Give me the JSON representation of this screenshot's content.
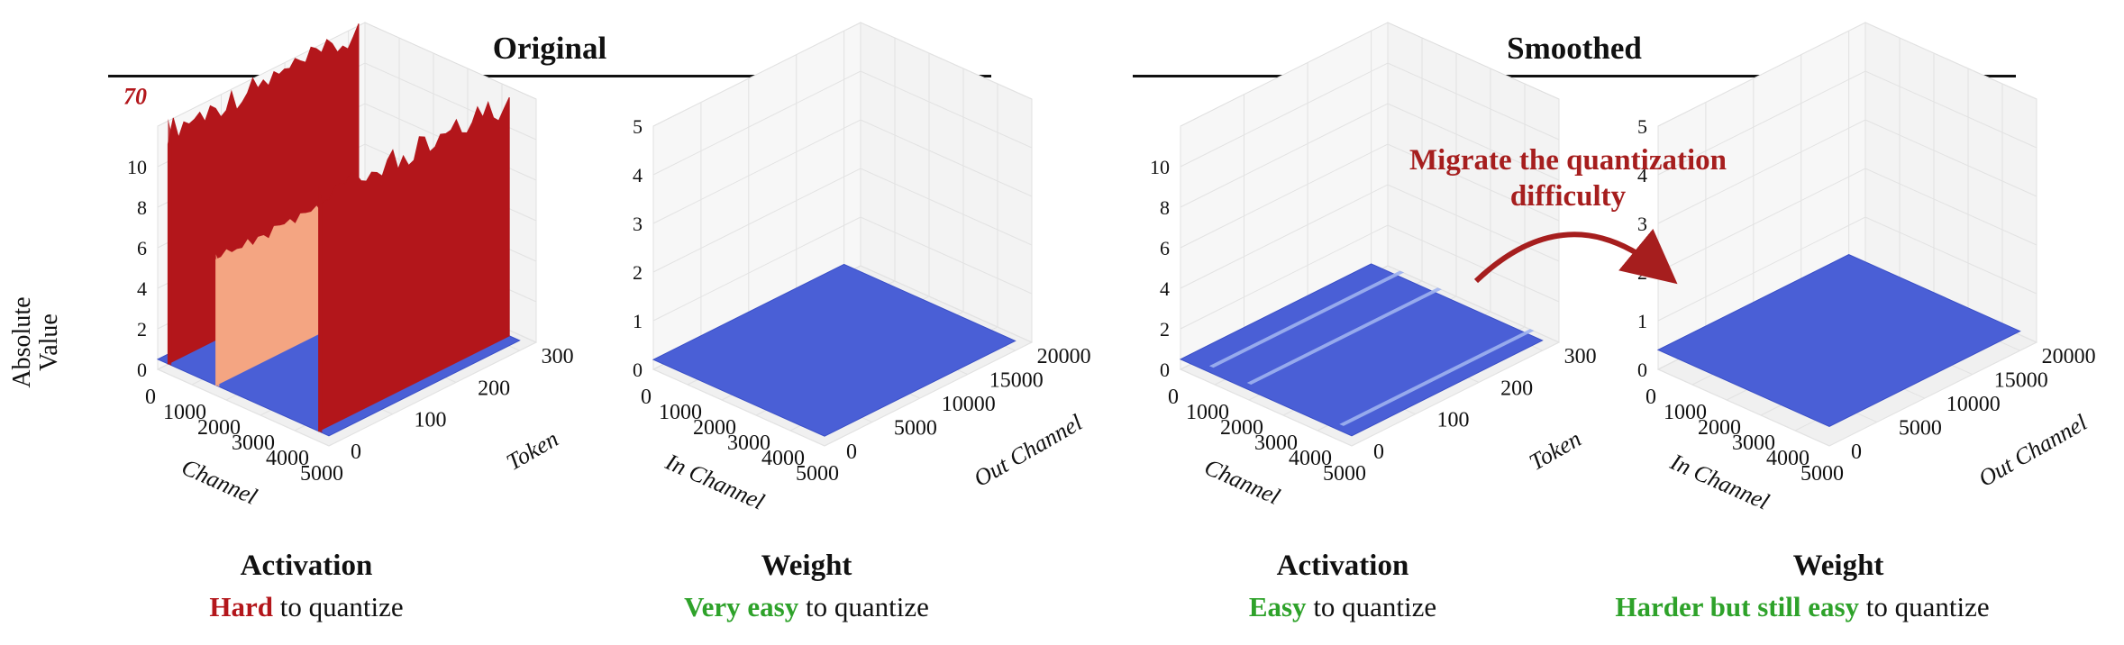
{
  "sections": {
    "original": "Original",
    "smoothed": "Smoothed"
  },
  "ylabel": [
    "Absolute",
    "Value"
  ],
  "migrate_text": [
    "Migrate the quantization",
    "difficulty"
  ],
  "captions": [
    {
      "title": "Activation",
      "highlight": "Hard",
      "rest": " to quantize",
      "color": "red"
    },
    {
      "title": "Weight",
      "highlight": "Very easy",
      "rest": " to quantize",
      "color": "green"
    },
    {
      "title": "Activation",
      "highlight": "Easy",
      "rest": " to quantize",
      "color": "green"
    },
    {
      "title": "Weight",
      "highlight": "Harder but still easy",
      "rest": " to quantize",
      "color": "green"
    }
  ],
  "colors": {
    "outlier_red": "#b3161b",
    "mid_orange": "#f4a582",
    "base_blue": "#4a5fd6",
    "light_blue": "#9fb3f0",
    "highlight_red": "#b3161b",
    "highlight_green": "#2ea22a",
    "arrow": "#a61e1e"
  },
  "chart_data": [
    {
      "type": "surface3d",
      "panel": "Original Activation",
      "xlabel": "Channel",
      "ylabel": "Token",
      "zlabel": "Absolute Value",
      "x_ticks": [
        "0",
        "1000",
        "2000",
        "3000",
        "4000",
        "5000"
      ],
      "y_ticks": [
        "0",
        "100",
        "200",
        "300"
      ],
      "z_ticks": [
        "0",
        "2",
        "4",
        "6",
        "8",
        "10"
      ],
      "z_break_label": "70",
      "xlim": [
        0,
        5000
      ],
      "ylim": [
        0,
        350
      ],
      "zlim": [
        0,
        12
      ],
      "outlier_channels": [
        {
          "channel": 300,
          "level": "high"
        },
        {
          "channel": 1700,
          "level": "mid"
        },
        {
          "channel": 4700,
          "level": "high"
        }
      ],
      "baseline_value": 0.5
    },
    {
      "type": "surface3d",
      "panel": "Original Weight",
      "xlabel": "In Channel",
      "ylabel": "Out Channel",
      "x_ticks": [
        "0",
        "1000",
        "2000",
        "3000",
        "4000",
        "5000"
      ],
      "y_ticks": [
        "0",
        "5000",
        "10000",
        "15000",
        "20000"
      ],
      "z_ticks": [
        "0",
        "1",
        "2",
        "3",
        "4",
        "5"
      ],
      "xlim": [
        0,
        5000
      ],
      "ylim": [
        0,
        20000
      ],
      "zlim": [
        0,
        5
      ],
      "baseline_value": 0.2
    },
    {
      "type": "surface3d",
      "panel": "Smoothed Activation",
      "xlabel": "Channel",
      "ylabel": "Token",
      "x_ticks": [
        "0",
        "1000",
        "2000",
        "3000",
        "4000",
        "5000"
      ],
      "y_ticks": [
        "0",
        "100",
        "200",
        "300"
      ],
      "z_ticks": [
        "0",
        "2",
        "4",
        "6",
        "8",
        "10"
      ],
      "xlim": [
        0,
        5000
      ],
      "ylim": [
        0,
        350
      ],
      "zlim": [
        0,
        12
      ],
      "light_channels": [
        900,
        2000,
        4700
      ],
      "baseline_value": 0.5
    },
    {
      "type": "surface3d",
      "panel": "Smoothed Weight",
      "xlabel": "In Channel",
      "ylabel": "Out Channel",
      "x_ticks": [
        "0",
        "1000",
        "2000",
        "3000",
        "4000",
        "5000"
      ],
      "y_ticks": [
        "0",
        "5000",
        "10000",
        "15000",
        "20000"
      ],
      "z_ticks": [
        "0",
        "1",
        "2",
        "3",
        "4",
        "5"
      ],
      "xlim": [
        0,
        5000
      ],
      "ylim": [
        0,
        20000
      ],
      "zlim": [
        0,
        5
      ],
      "baseline_value": 0.4
    }
  ]
}
